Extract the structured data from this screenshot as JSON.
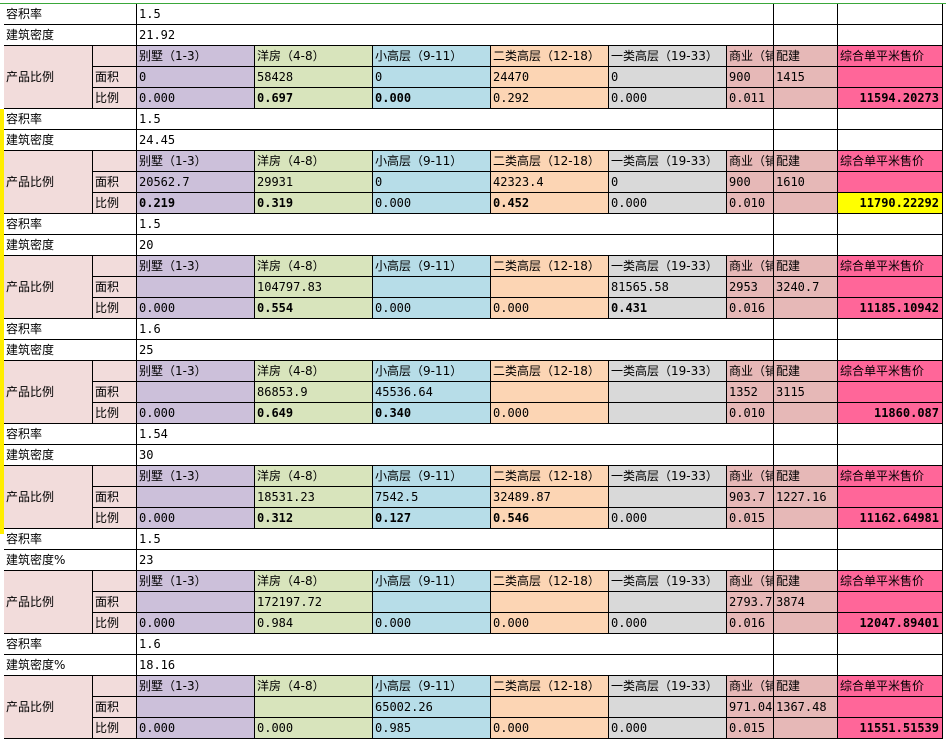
{
  "labels": {
    "far": "容积率",
    "area": "面积",
    "ratio": "比例",
    "product": "产品比例"
  },
  "headers": [
    "别墅（1-3）",
    "洋房（4-8）",
    "小高层（9-11）",
    "二类高层（12-18）",
    "一类高层（19-33）",
    "商业（铺）",
    "配建",
    "综合单平米售价"
  ],
  "colors": {
    "villa": "#ccc0da",
    "western": "#d8e4bc",
    "small_high": "#b7dde8",
    "high2": "#fcd5b4",
    "high1": "#d9d9d9",
    "commercial": "#e6b8b7",
    "price": "#ff6699",
    "label": "#f2dcdb",
    "highlight": "#ffff00"
  },
  "blocks": [
    {
      "far": "1.5",
      "density_label": "建筑密度",
      "density": "21.92",
      "areas": [
        "0",
        "58428",
        "0",
        "24470",
        "0",
        "900",
        "1415"
      ],
      "ratios": [
        "0.000",
        "0.697",
        "0.000",
        "0.292",
        "0.000",
        "0.011"
      ],
      "bold": [
        1,
        2
      ],
      "price": "11594.20273"
    },
    {
      "far": "1.5",
      "density_label": "建筑密度",
      "density": "24.45",
      "areas": [
        "20562.7",
        "29931",
        "0",
        "42323.4",
        "0",
        "900",
        "1610"
      ],
      "ratios": [
        "0.219",
        "0.319",
        "0.000",
        "0.452",
        "0.000",
        "0.010"
      ],
      "bold": [
        0,
        1,
        3
      ],
      "price": "11790.22292",
      "highlight": true
    },
    {
      "far": "1.5",
      "density_label": "建筑密度",
      "density": "20",
      "areas": [
        "",
        "104797.83",
        "",
        "",
        "81565.58",
        "2953",
        "3240.7"
      ],
      "ratios": [
        "0.000",
        "0.554",
        "0.000",
        "0.000",
        "0.431",
        "0.016"
      ],
      "bold": [
        1,
        4
      ],
      "price": "11185.10942"
    },
    {
      "far": "1.6",
      "density_label": "建筑密度",
      "density": "25",
      "areas": [
        "",
        "86853.9",
        "45536.64",
        "",
        "",
        "1352",
        "3115"
      ],
      "ratios": [
        "0.000",
        "0.649",
        "0.340",
        "0.000",
        "",
        "0.010"
      ],
      "bold": [
        1,
        2
      ],
      "price": "11860.087"
    },
    {
      "far": "1.54",
      "density_label": "建筑密度",
      "density": "30",
      "areas": [
        "",
        "18531.23",
        "7542.5",
        "32489.87",
        "",
        "903.7",
        "1227.16"
      ],
      "ratios": [
        "0.000",
        "0.312",
        "0.127",
        "0.546",
        "0.000",
        "0.015"
      ],
      "bold": [
        1,
        2,
        3
      ],
      "price": "11162.64981"
    },
    {
      "far": "1.5",
      "density_label": "建筑密度%",
      "density": "23",
      "areas": [
        "",
        "172197.72",
        "",
        "",
        "",
        "2793.7",
        "3874"
      ],
      "ratios": [
        "0.000",
        "0.984",
        "0.000",
        "0.000",
        "0.000",
        "0.016"
      ],
      "bold": [],
      "price": "12047.89401"
    },
    {
      "far": "1.6",
      "density_label": "建筑密度%",
      "density": "18.16",
      "areas": [
        "",
        "",
        "65002.26",
        "",
        "",
        "971.04",
        "1367.48"
      ],
      "ratios": [
        "0.000",
        "0.000",
        "0.985",
        "0.000",
        "0.000",
        "0.015"
      ],
      "bold": [],
      "price": "11551.51539"
    }
  ]
}
